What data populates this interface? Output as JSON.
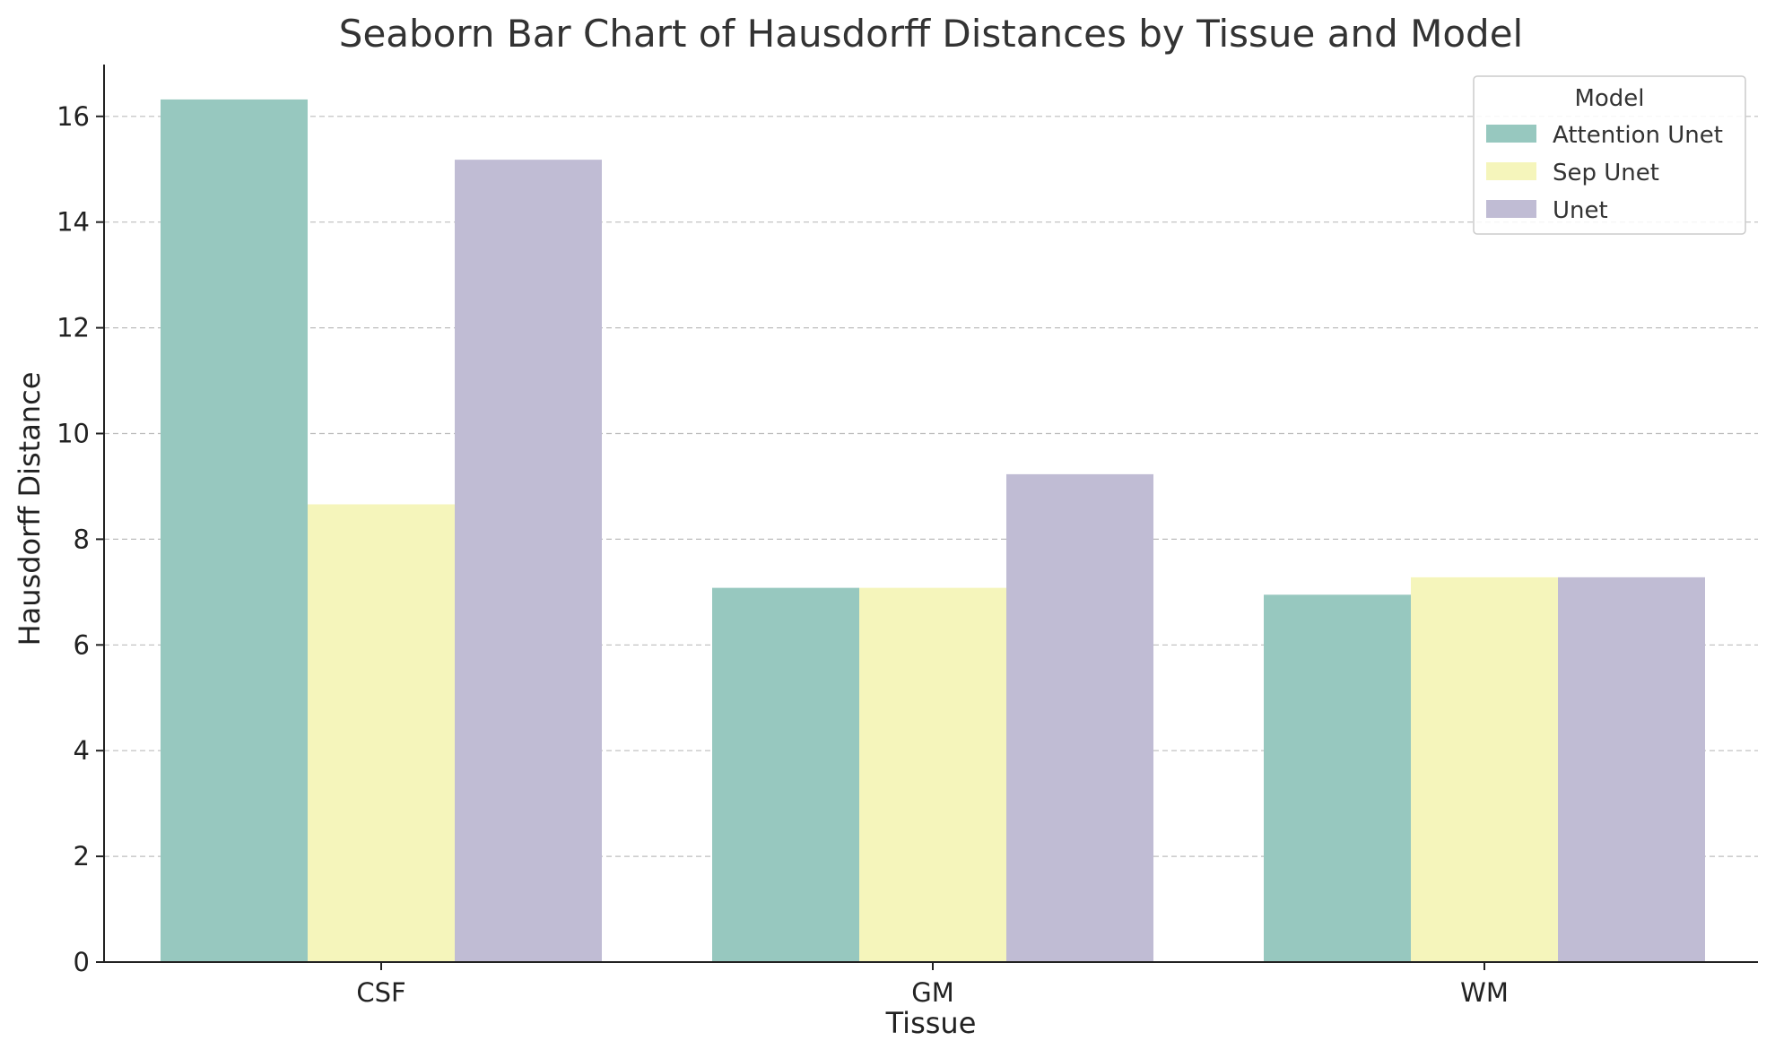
{
  "chart_data": {
    "type": "bar",
    "title": "Seaborn Bar Chart of Hausdorff Distances by Tissue and Model",
    "xlabel": "Tissue",
    "ylabel": "Hausdorff Distance",
    "categories": [
      "CSF",
      "GM",
      "WM"
    ],
    "series": [
      {
        "name": "Attention Unet",
        "color": "#97c8bf",
        "values": [
          16.32,
          7.08,
          6.95
        ]
      },
      {
        "name": "Sep Unet",
        "color": "#f5f5bb",
        "values": [
          8.66,
          7.08,
          7.28
        ]
      },
      {
        "name": "Unet",
        "color": "#c0bcd4",
        "values": [
          15.18,
          9.23,
          7.28
        ]
      }
    ],
    "ylim": [
      0,
      17.15
    ],
    "yticks": [
      0,
      2,
      4,
      6,
      8,
      10,
      12,
      14,
      16
    ],
    "grid": {
      "y": true,
      "style": "dashed"
    },
    "legend": {
      "title": "Model",
      "position": "top-right"
    }
  }
}
